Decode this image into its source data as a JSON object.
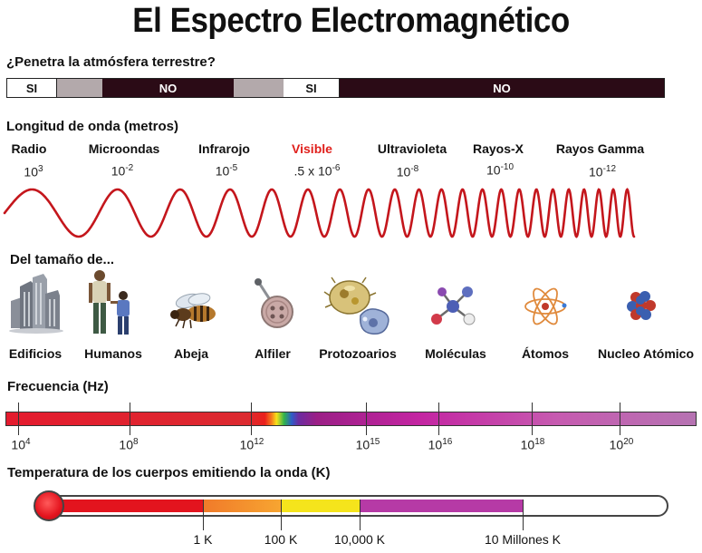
{
  "title": "El Espectro Electromagnético",
  "atmosphere": {
    "question": "¿Penetra la atmósfera terrestre?",
    "segments": [
      {
        "label": "SI",
        "kind": "si"
      },
      {
        "label": "",
        "kind": "gray"
      },
      {
        "label": "NO",
        "kind": "no"
      },
      {
        "label": "",
        "kind": "gray"
      },
      {
        "label": "SI",
        "kind": "si"
      },
      {
        "label": "NO",
        "kind": "no"
      }
    ]
  },
  "wavelength": {
    "heading": "Longitud de onda (metros)",
    "bands": [
      {
        "name": "Radio",
        "base": "10",
        "exp": "3"
      },
      {
        "name": "Microondas",
        "base": "10",
        "exp": "-2"
      },
      {
        "name": "Infrarojo",
        "base": "10",
        "exp": "-5"
      },
      {
        "name": "Visible",
        "base": ".5 x 10",
        "exp": "-6"
      },
      {
        "name": "Ultravioleta",
        "base": "10",
        "exp": "-8"
      },
      {
        "name": "Rayos-X",
        "base": "10",
        "exp": "-10"
      },
      {
        "name": "Rayos Gamma",
        "base": "10",
        "exp": "-12"
      }
    ],
    "wave_color": "#c4161c",
    "visible_color": "#e0201c"
  },
  "sizes": {
    "heading": "Del tamaño de...",
    "objects": [
      {
        "label": "Edificios",
        "icon": "buildings-icon"
      },
      {
        "label": "Humanos",
        "icon": "humans-icon"
      },
      {
        "label": "Abeja",
        "icon": "bee-icon"
      },
      {
        "label": "Alfiler",
        "icon": "pin-icon"
      },
      {
        "label": "Protozoarios",
        "icon": "protozoa-icon"
      },
      {
        "label": "Moléculas",
        "icon": "molecule-icon"
      },
      {
        "label": "Átomos",
        "icon": "atom-icon"
      },
      {
        "label": "Nucleo Atómico",
        "icon": "nucleus-icon"
      }
    ]
  },
  "frequency": {
    "heading": "Frecuencia (Hz)",
    "ticks": [
      {
        "base": "10",
        "exp": "4"
      },
      {
        "base": "10",
        "exp": "8"
      },
      {
        "base": "10",
        "exp": "12"
      },
      {
        "base": "10",
        "exp": "15"
      },
      {
        "base": "10",
        "exp": "16"
      },
      {
        "base": "10",
        "exp": "18"
      },
      {
        "base": "10",
        "exp": "20"
      }
    ]
  },
  "temperature": {
    "heading": "Temperatura de los cuerpos emitiendo la onda (K)",
    "labels": [
      "1 K",
      "100 K",
      "10,000 K",
      "10 Millones K"
    ],
    "colors": [
      "#e3141e",
      "#f4902a",
      "#f5e41c",
      "#b63aa6"
    ]
  }
}
